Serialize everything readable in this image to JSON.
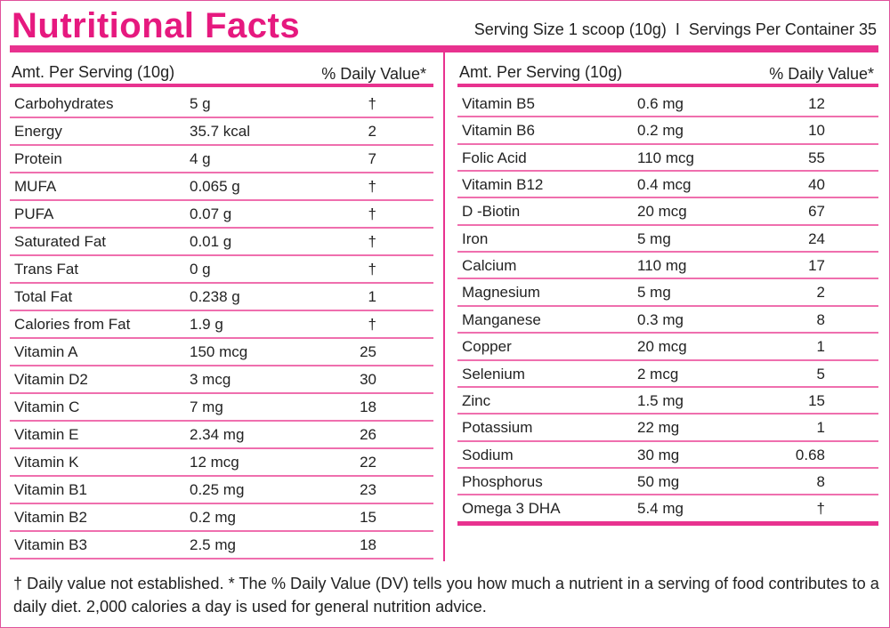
{
  "header": {
    "title": "Nutritional Facts",
    "serving": "Serving Size 1 scoop (10g)  I  Servings Per Container 35"
  },
  "tables": [
    {
      "columns": [
        "Amt. Per Serving (10g)",
        "% Daily Value*"
      ],
      "rows": [
        [
          "Carbohydrates",
          "5 g",
          "†"
        ],
        [
          "Energy",
          "35.7 kcal",
          "2"
        ],
        [
          "Protein",
          "4 g",
          "7"
        ],
        [
          "MUFA",
          "0.065 g",
          "†"
        ],
        [
          "PUFA",
          "0.07 g",
          "†"
        ],
        [
          "Saturated Fat",
          "0.01 g",
          "†"
        ],
        [
          "Trans Fat",
          "0 g",
          "†"
        ],
        [
          "Total Fat",
          "0.238 g",
          "1"
        ],
        [
          "Calories from Fat",
          "1.9 g",
          "†"
        ],
        [
          "Vitamin A",
          "150 mcg",
          "25"
        ],
        [
          "Vitamin D2",
          "3 mcg",
          "30"
        ],
        [
          "Vitamin C",
          "7 mg",
          "18"
        ],
        [
          "Vitamin E",
          "2.34 mg",
          "26"
        ],
        [
          "Vitamin K",
          "12 mcg",
          "22"
        ],
        [
          "Vitamin B1",
          "0.25 mg",
          "23"
        ],
        [
          "Vitamin B2",
          "0.2 mg",
          "15"
        ],
        [
          "Vitamin B3",
          "2.5 mg",
          "18"
        ]
      ]
    },
    {
      "columns": [
        "Amt. Per Serving (10g)",
        "% Daily Value*"
      ],
      "rows": [
        [
          "Vitamin B5",
          "0.6 mg",
          "12"
        ],
        [
          "Vitamin B6",
          "0.2 mg",
          "10"
        ],
        [
          "Folic Acid",
          "110 mcg",
          "55"
        ],
        [
          "Vitamin B12",
          "0.4 mcg",
          "40"
        ],
        [
          "D -Biotin",
          "20 mcg",
          "67"
        ],
        [
          "Iron",
          "5 mg",
          "24"
        ],
        [
          "Calcium",
          "110 mg",
          "17"
        ],
        [
          "Magnesium",
          "5 mg",
          "2"
        ],
        [
          "Manganese",
          "0.3 mg",
          "8"
        ],
        [
          "Copper",
          "20 mcg",
          "1"
        ],
        [
          "Selenium",
          "2 mcg",
          "5"
        ],
        [
          "Zinc",
          "1.5 mg",
          "15"
        ],
        [
          "Potassium",
          "22 mg",
          "1"
        ],
        [
          "Sodium",
          "30 mg",
          "0.68"
        ],
        [
          "Phosphorus",
          "50 mg",
          "8"
        ],
        [
          "Omega 3 DHA",
          "5.4 mg",
          "†"
        ]
      ]
    }
  ],
  "footnote": "† Daily value not established. * The % Daily Value (DV) tells you how much a nutrient in a serving of food contributes to a daily diet. 2,000 calories a day is used for general nutrition advice."
}
